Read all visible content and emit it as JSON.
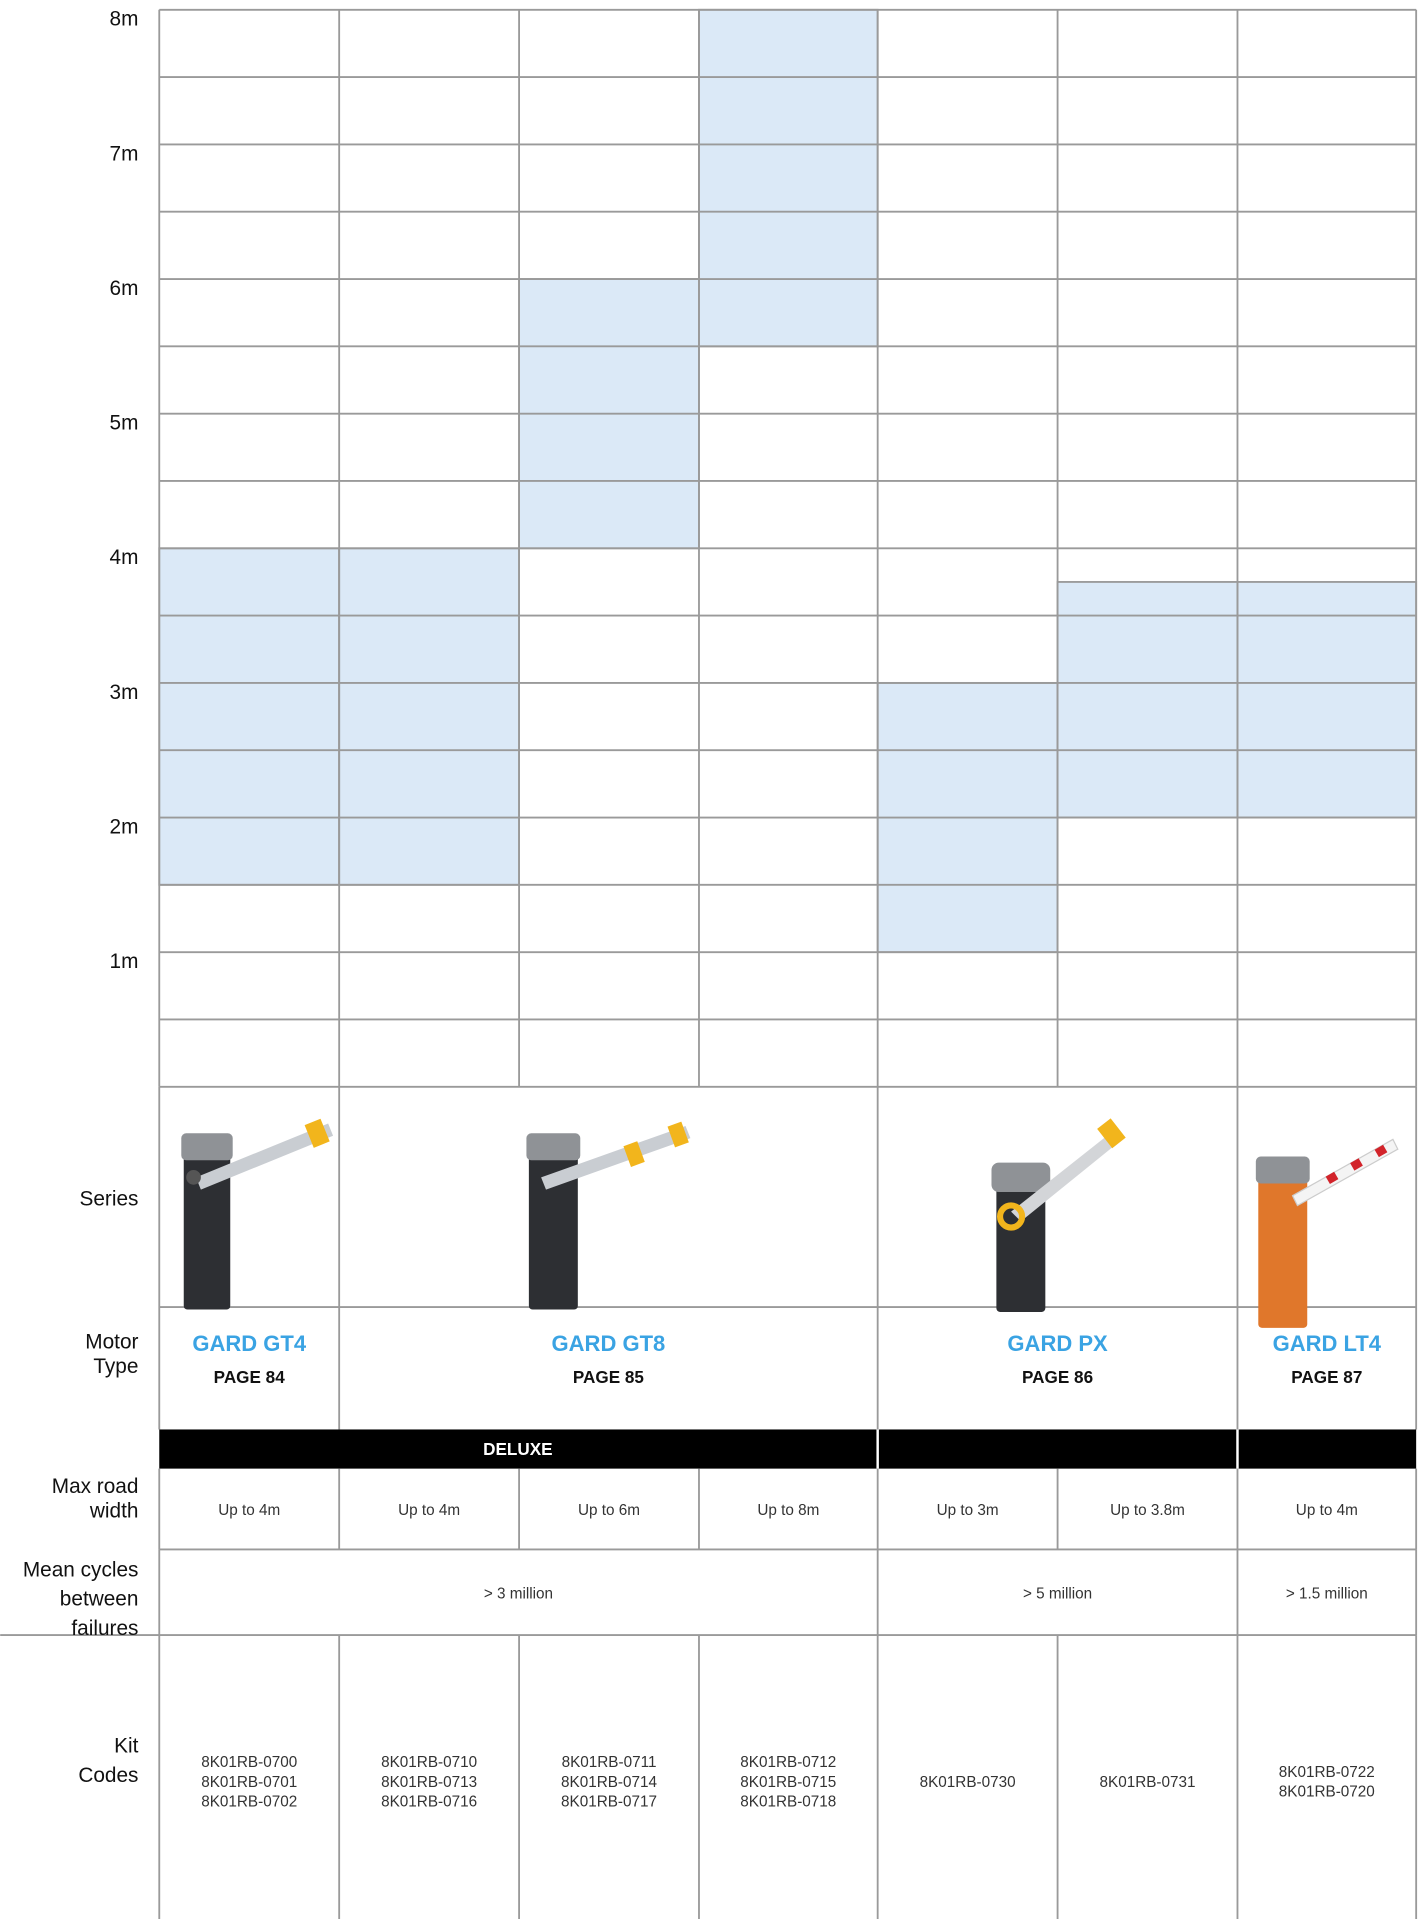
{
  "chart_data": {
    "type": "range-bar",
    "categories": [
      null,
      null,
      null,
      null,
      null,
      null,
      null
    ],
    "series": [
      {
        "color": "#dbe9f7",
        "values": [
          [
            1.5,
            4
          ],
          [
            1.5,
            4
          ],
          [
            4,
            6
          ],
          [
            5.5,
            8
          ],
          [
            1,
            3
          ],
          [
            2,
            3.75
          ],
          [
            2,
            3.75
          ]
        ]
      }
    ],
    "ylim": [
      0,
      8
    ],
    "yticks": [
      {
        "value": 1,
        "label": "1m"
      },
      {
        "value": 2,
        "label": "2m"
      },
      {
        "value": 3,
        "label": "3m"
      },
      {
        "value": 4,
        "label": "4m"
      },
      {
        "value": 5,
        "label": "5m"
      },
      {
        "value": 6,
        "label": "6m"
      },
      {
        "value": 7,
        "label": "7m"
      },
      {
        "value": 8,
        "label": "8m"
      }
    ],
    "grid": true
  },
  "table": {
    "row_labels": [
      [
        "Series"
      ],
      [
        "Motor",
        "Type"
      ],
      [
        "Max road",
        "width"
      ],
      [
        "Mean cycles",
        "between",
        "failures"
      ],
      [
        "Kit",
        "Codes"
      ]
    ],
    "motors": [
      {
        "name": "GARD GT4",
        "page": "PAGE 84"
      },
      {
        "name": "GARD GT8",
        "page": "PAGE 85"
      },
      {
        "name": "GARD PX",
        "page": "PAGE 86"
      },
      {
        "name": "GARD LT4",
        "page": "PAGE 87"
      }
    ],
    "band": "DELUXE",
    "max_road_width": [
      "Up to 4m",
      "Up to 4m",
      "Up to 6m",
      "Up to 8m",
      "Up to 3m",
      "Up to 3.8m",
      "Up to 4m"
    ],
    "mean_cycles": [
      "> 3 million",
      "> 5 million",
      "> 1.5 million"
    ],
    "kit_codes": [
      [
        "8K01RB-0700",
        "8K01RB-0701",
        "8K01RB-0702"
      ],
      [
        "8K01RB-0710",
        "8K01RB-0713",
        "8K01RB-0716"
      ],
      [
        "8K01RB-0711",
        "8K01RB-0714",
        "8K01RB-0717"
      ],
      [
        "8K01RB-0712",
        "8K01RB-0715",
        "8K01RB-0718"
      ],
      [
        "8K01RB-0730"
      ],
      [
        "8K01RB-0731"
      ],
      [
        "8K01RB-0722",
        "8K01RB-0720"
      ]
    ]
  }
}
